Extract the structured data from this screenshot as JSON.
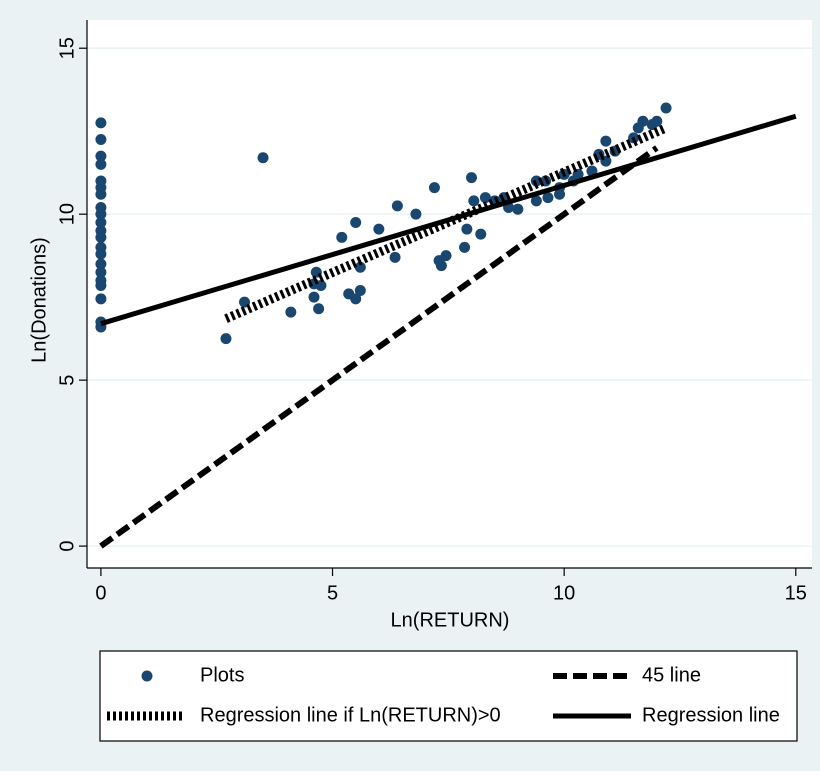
{
  "chart_data": {
    "type": "scatter",
    "xlabel": "Ln(RETURN)",
    "ylabel": "Ln(Donations)",
    "xlim": [
      -0.3,
      15.35
    ],
    "ylim": [
      -0.66,
      15.85
    ],
    "xticks": [
      0,
      5,
      10,
      15
    ],
    "yticks": [
      0,
      5,
      10,
      15
    ],
    "grid": true,
    "legend": "bottom",
    "series": [
      {
        "name": "Plots",
        "style": "markers",
        "color": "#1a476f",
        "x": [
          0,
          0,
          0,
          0,
          0,
          0,
          0,
          0,
          0,
          0,
          0,
          0,
          0,
          0,
          0,
          0,
          0,
          0,
          0,
          0,
          0,
          2.7,
          3.1,
          3.5,
          4.1,
          4.6,
          4.6,
          4.65,
          4.7,
          4.75,
          5.2,
          5.35,
          5.5,
          5.5,
          5.6,
          5.6,
          6.0,
          6.35,
          6.4,
          6.8,
          7.2,
          7.3,
          7.35,
          7.45,
          7.85,
          7.9,
          8.0,
          8.05,
          8.2,
          8.3,
          8.5,
          8.7,
          8.8,
          9.0,
          9.4,
          9.4,
          9.6,
          9.65,
          9.9,
          9.9,
          10.0,
          10.2,
          10.3,
          10.6,
          10.75,
          10.9,
          10.9,
          11.1,
          11.5,
          11.6,
          11.7,
          11.9,
          12.0,
          12.2
        ],
        "values": [
          12.75,
          12.25,
          11.75,
          11.5,
          11.0,
          10.8,
          10.6,
          10.2,
          10.0,
          9.75,
          9.5,
          9.3,
          9.0,
          8.8,
          8.5,
          8.25,
          8.0,
          7.85,
          7.45,
          6.75,
          6.6,
          6.25,
          7.35,
          11.7,
          7.05,
          7.9,
          7.5,
          8.25,
          7.15,
          7.85,
          9.3,
          7.6,
          9.75,
          7.45,
          7.7,
          8.4,
          9.55,
          8.7,
          10.25,
          10.0,
          10.8,
          8.6,
          8.45,
          8.75,
          9.0,
          9.55,
          11.1,
          10.4,
          9.4,
          10.5,
          10.4,
          10.5,
          10.2,
          10.15,
          11.0,
          10.4,
          11.0,
          10.5,
          10.6,
          10.8,
          11.2,
          11.0,
          11.2,
          11.3,
          11.8,
          11.6,
          12.2,
          11.9,
          12.3,
          12.6,
          12.8,
          12.7,
          12.8,
          13.2
        ]
      },
      {
        "name": "45 line",
        "style": "dashed",
        "color": "#000000",
        "x": [
          0,
          12
        ],
        "values": [
          0,
          12
        ]
      },
      {
        "name": "Regression line if Ln(RETURN)>0",
        "style": "dotted",
        "color": "#000000",
        "x": [
          2.7,
          12.2
        ],
        "values": [
          6.85,
          12.6
        ]
      },
      {
        "name": "Regression line",
        "style": "solid",
        "color": "#000000",
        "x": [
          0,
          15
        ],
        "values": [
          6.7,
          12.95
        ]
      }
    ]
  }
}
